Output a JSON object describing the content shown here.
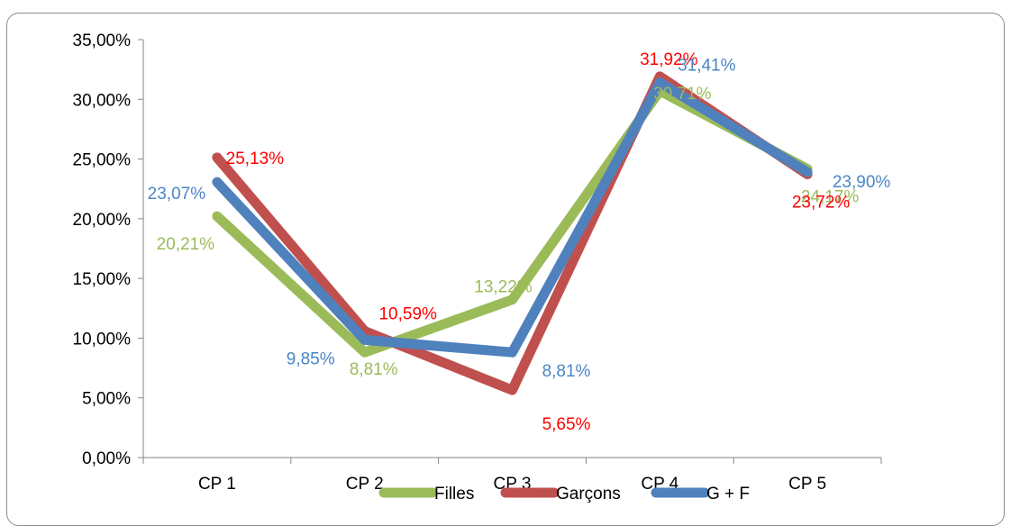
{
  "chart_data": {
    "type": "line",
    "title": "",
    "xlabel": "",
    "ylabel": "",
    "categories": [
      "CP 1",
      "CP 2",
      "CP 3",
      "CP 4",
      "CP 5"
    ],
    "ylim": [
      0,
      0.35
    ],
    "ytick_values": [
      0,
      0.05,
      0.1,
      0.15,
      0.2,
      0.25,
      0.3,
      0.35
    ],
    "ytick_labels": [
      "0,00%",
      "5,00%",
      "10,00%",
      "15,00%",
      "20,00%",
      "25,00%",
      "30,00%",
      "35,00%"
    ],
    "grid": false,
    "legend_position": "bottom",
    "series": [
      {
        "name": "Filles",
        "color": "#9bbb59",
        "values": [
          0.2021,
          0.0881,
          0.1322,
          0.3071,
          0.2417
        ],
        "labels": [
          "20,21%",
          "8,81%",
          "13,22%",
          "30,71%",
          "24,17%"
        ]
      },
      {
        "name": "Garçons",
        "color": "#c0504d",
        "label_color": "#ff0000",
        "values": [
          0.2513,
          0.1059,
          0.0565,
          0.3192,
          0.2372
        ],
        "labels": [
          "25,13%",
          "10,59%",
          "5,65%",
          "31,92%",
          "23,72%"
        ]
      },
      {
        "name": "G + F",
        "color": "#4f81bd",
        "label_color": "#4a86c6",
        "values": [
          0.2307,
          0.0985,
          0.0881,
          0.3141,
          0.239
        ],
        "labels": [
          "23,07%",
          "9,85%",
          "8,81%",
          "31,41%",
          "23,90%"
        ]
      }
    ]
  }
}
